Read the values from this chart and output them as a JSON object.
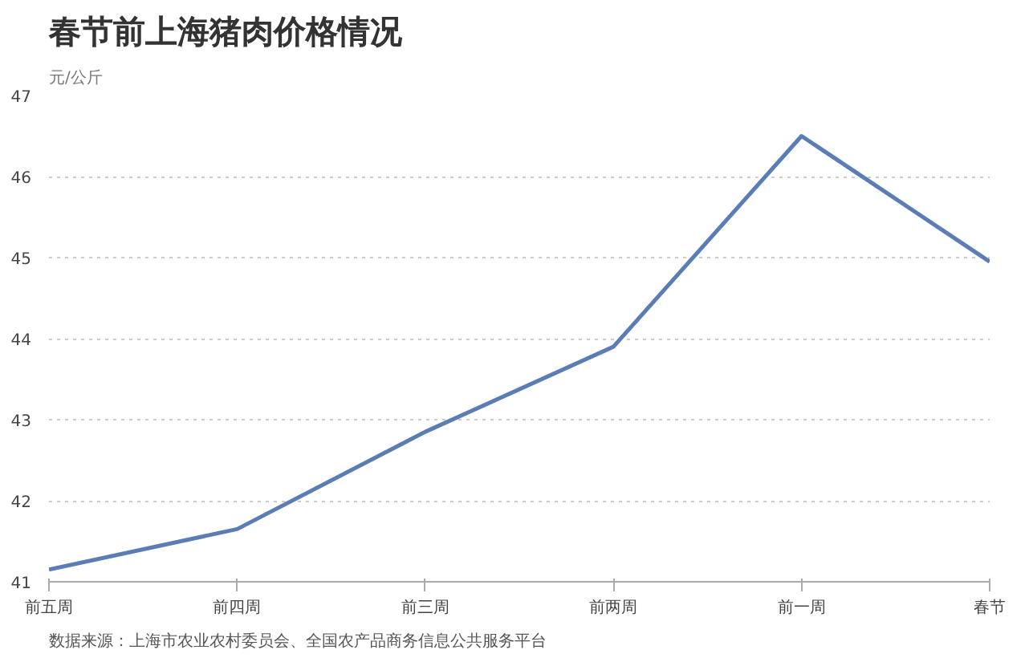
{
  "chart_data": {
    "type": "line",
    "title": "春节前上海猪肉价格情况",
    "ylabel": "元/公斤",
    "categories": [
      "前五周",
      "前四周",
      "前三周",
      "前两周",
      "前一周",
      "春节"
    ],
    "series": [
      {
        "color": "#5b7db5",
        "values": [
          41.15,
          41.65,
          42.85,
          43.9,
          46.5,
          44.95
        ]
      }
    ],
    "ylim": [
      41,
      47
    ],
    "yticks": [
      41,
      42,
      43,
      44,
      45,
      46,
      47
    ],
    "grid": "y",
    "marker": "none",
    "line_style": "solid",
    "annotations": [
      "数据来源：上海市农业农村委员会、全国农产品商务信息公共服务平台"
    ]
  }
}
